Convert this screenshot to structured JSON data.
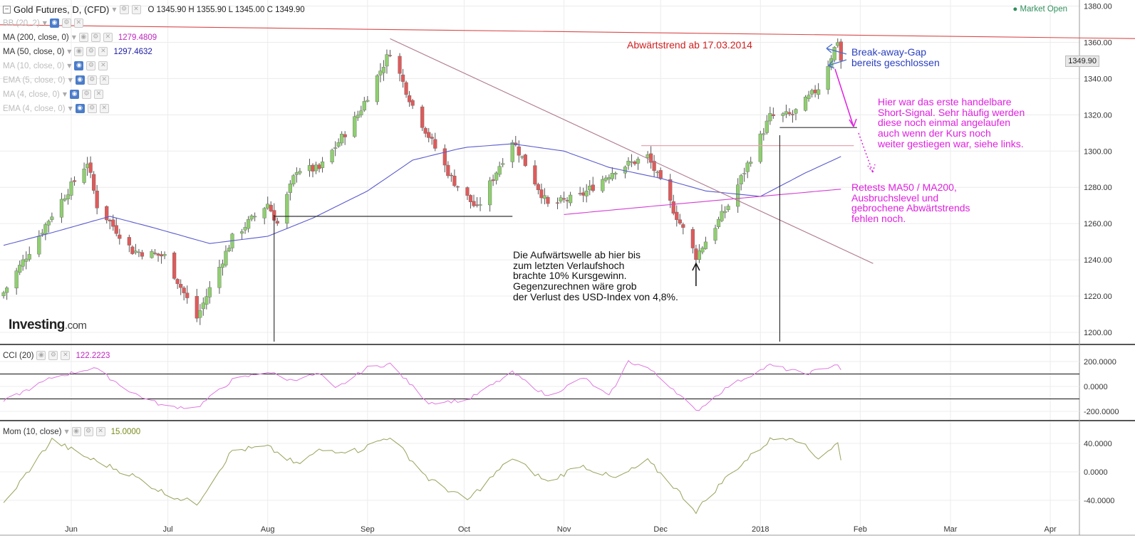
{
  "header": {
    "title": "Gold Futures, D, (CFD)",
    "ohlc": "O 1345.90  H 1355.90  L 1345.00  C 1349.90",
    "market_status": "Market Open",
    "current_price_label": "1349.90"
  },
  "indicators": [
    {
      "label": "BB (20, 2)",
      "value": "",
      "active": false
    },
    {
      "label": "MA (200, close, 0)",
      "value": "1279.4809",
      "active": true,
      "color": "#c026c0"
    },
    {
      "label": "MA (50, close, 0)",
      "value": "1297.4632",
      "active": true,
      "color": "#1a1aa6"
    },
    {
      "label": "MA (10, close, 0)",
      "value": "",
      "active": false
    },
    {
      "label": "EMA (5, close, 0)",
      "value": "",
      "active": false
    },
    {
      "label": "MA (4, close, 0)",
      "value": "",
      "active": false
    },
    {
      "label": "EMA (4, close, 0)",
      "value": "",
      "active": false
    }
  ],
  "sub_panels": {
    "cci": {
      "label": "CCI (20)",
      "value": "122.2223",
      "color": "#c026c0"
    },
    "mom": {
      "label": "Mom (10, close)",
      "value": "15.0000",
      "color": "#7a8a1a"
    }
  },
  "logo": {
    "main": "Investing",
    "suffix": ".com"
  },
  "annotations": {
    "downtrend": "Abwärtstrend ab 17.03.2014",
    "gap": "Break-away-Gap\nbereits geschlossen",
    "short_signal": "Hier war das erste handelbare\nShort-Signal. Sehr häufig werden\ndiese noch einmal angelaufen\nauch wenn der Kurs noch\nweiter gestiegen war, siehe links.",
    "retests": "Retests MA50 / MA200,\nAusbruchslevel und\ngebrochene Abwärtstrends\nfehlen noch.",
    "upwave": "Die Aufwärtswelle ab hier bis\nzum letzten Verlaufshoch\nbrachte 10% Kursgewinn.\nGegenzurechnen wäre grob\nder Verlust des USD-Index von 4,8%."
  },
  "colors": {
    "up": "#8fcf6f",
    "down": "#e05a5a",
    "ma50": "#5a5acf",
    "ma200": "#d23fd2",
    "cci": "#e07ae0",
    "mom": "#9aa25a",
    "trendline_red": "#d84a4a",
    "trendline_mauve": "#b07a90",
    "annot_red": "#d02020",
    "annot_blue": "#2a3fbf",
    "annot_magenta": "#e020e0"
  },
  "chart_data": {
    "type": "candlestick",
    "instrument": "Gold Futures",
    "timeframe": "D",
    "xlabels": [
      "Jun",
      "Jul",
      "Aug",
      "Sep",
      "Oct",
      "Nov",
      "Dec",
      "2018",
      "Feb",
      "Mar",
      "Apr"
    ],
    "price_axis": {
      "ticks": [
        1200,
        1220,
        1240,
        1260,
        1280,
        1300,
        1320,
        1340,
        1360,
        1380
      ],
      "ylim": [
        1194,
        1382
      ]
    },
    "cci_axis": {
      "ticks": [
        "200.0000",
        "0.0000",
        "-200.0000"
      ],
      "levels": [
        100,
        -100
      ]
    },
    "mom_axis": {
      "ticks": [
        "40.0000",
        "0.0000",
        "-40.0000"
      ]
    },
    "close_waypoints": [
      [
        "2017-05-11",
        1222
      ],
      [
        "2017-05-26",
        1265
      ],
      [
        "2017-06-06",
        1294
      ],
      [
        "2017-06-09",
        1270
      ],
      [
        "2017-06-20",
        1245
      ],
      [
        "2017-06-30",
        1242
      ],
      [
        "2017-07-10",
        1208
      ],
      [
        "2017-07-21",
        1252
      ],
      [
        "2017-08-01",
        1271
      ],
      [
        "2017-08-04",
        1260
      ],
      [
        "2017-08-10",
        1290
      ],
      [
        "2017-08-17",
        1290
      ],
      [
        "2017-08-29",
        1320
      ],
      [
        "2017-09-08",
        1355
      ],
      [
        "2017-09-15",
        1325
      ],
      [
        "2017-09-27",
        1285
      ],
      [
        "2017-10-05",
        1268
      ],
      [
        "2017-10-16",
        1306
      ],
      [
        "2017-10-27",
        1270
      ],
      [
        "2017-11-06",
        1275
      ],
      [
        "2017-11-17",
        1290
      ],
      [
        "2017-11-27",
        1297
      ],
      [
        "2017-12-12",
        1242
      ],
      [
        "2017-12-22",
        1270
      ],
      [
        "2018-01-04",
        1319
      ],
      [
        "2018-01-11",
        1320
      ],
      [
        "2018-01-19",
        1335
      ],
      [
        "2018-01-25",
        1361
      ],
      [
        "2018-01-26",
        1350
      ]
    ],
    "ma50_waypoints": [
      [
        "2017-05-11",
        1248
      ],
      [
        "2017-05-26",
        1255
      ],
      [
        "2017-06-13",
        1264
      ],
      [
        "2017-06-26",
        1258
      ],
      [
        "2017-07-14",
        1249
      ],
      [
        "2017-08-01",
        1253
      ],
      [
        "2017-08-15",
        1263
      ],
      [
        "2017-09-01",
        1278
      ],
      [
        "2017-09-15",
        1295
      ],
      [
        "2017-10-01",
        1302
      ],
      [
        "2017-10-16",
        1304
      ],
      [
        "2017-11-01",
        1300
      ],
      [
        "2017-11-15",
        1291
      ],
      [
        "2017-12-01",
        1285
      ],
      [
        "2017-12-15",
        1278
      ],
      [
        "2018-01-01",
        1275
      ],
      [
        "2018-01-15",
        1288
      ],
      [
        "2018-01-26",
        1297
      ]
    ],
    "ma200_waypoints": [
      [
        "2017-11-01",
        1265
      ],
      [
        "2017-12-01",
        1270
      ],
      [
        "2018-01-01",
        1275
      ],
      [
        "2018-01-26",
        1279
      ]
    ],
    "cci_waypoints": [
      [
        "2017-05-11",
        -120
      ],
      [
        "2017-05-26",
        70
      ],
      [
        "2017-06-08",
        150
      ],
      [
        "2017-06-20",
        -50
      ],
      [
        "2017-06-30",
        -160
      ],
      [
        "2017-07-10",
        -170
      ],
      [
        "2017-07-21",
        50
      ],
      [
        "2017-08-01",
        120
      ],
      [
        "2017-08-08",
        50
      ],
      [
        "2017-08-17",
        100
      ],
      [
        "2017-08-22",
        -20
      ],
      [
        "2017-09-01",
        150
      ],
      [
        "2017-09-08",
        180
      ],
      [
        "2017-09-20",
        -130
      ],
      [
        "2017-10-02",
        -110
      ],
      [
        "2017-10-16",
        110
      ],
      [
        "2017-10-27",
        -80
      ],
      [
        "2017-11-07",
        70
      ],
      [
        "2017-11-15",
        -80
      ],
      [
        "2017-11-21",
        200
      ],
      [
        "2017-11-27",
        150
      ],
      [
        "2017-12-05",
        -20
      ],
      [
        "2017-12-12",
        -200
      ],
      [
        "2017-12-22",
        0
      ],
      [
        "2018-01-04",
        170
      ],
      [
        "2018-01-15",
        100
      ],
      [
        "2018-01-25",
        180
      ],
      [
        "2018-01-26",
        122
      ]
    ],
    "mom_waypoints": [
      [
        "2017-05-11",
        -45
      ],
      [
        "2017-05-26",
        45
      ],
      [
        "2017-06-06",
        20
      ],
      [
        "2017-06-20",
        -5
      ],
      [
        "2017-06-30",
        -30
      ],
      [
        "2017-07-10",
        -45
      ],
      [
        "2017-07-21",
        30
      ],
      [
        "2017-08-01",
        35
      ],
      [
        "2017-08-10",
        10
      ],
      [
        "2017-08-17",
        30
      ],
      [
        "2017-08-29",
        30
      ],
      [
        "2017-09-08",
        50
      ],
      [
        "2017-09-20",
        -10
      ],
      [
        "2017-10-02",
        -40
      ],
      [
        "2017-10-16",
        20
      ],
      [
        "2017-10-27",
        -15
      ],
      [
        "2017-11-06",
        10
      ],
      [
        "2017-11-17",
        -10
      ],
      [
        "2017-11-27",
        15
      ],
      [
        "2017-12-05",
        -20
      ],
      [
        "2017-12-12",
        -55
      ],
      [
        "2017-12-22",
        -5
      ],
      [
        "2018-01-04",
        45
      ],
      [
        "2018-01-11",
        50
      ],
      [
        "2018-01-19",
        20
      ],
      [
        "2018-01-25",
        40
      ],
      [
        "2018-01-26",
        15
      ]
    ],
    "horizontal_levels": [
      {
        "from": "2017-08-03",
        "to": "2017-10-16",
        "value": 1264
      },
      {
        "from": "2017-11-25",
        "to": "2018-01-30",
        "value": 1303
      },
      {
        "from": "2018-01-07",
        "to": "2018-01-31",
        "value": 1313
      }
    ],
    "trendlines": [
      {
        "name": "red",
        "from": [
          "2017-04-24",
          1370
        ],
        "to": [
          "2018-04-30",
          1362
        ]
      },
      {
        "name": "mauve",
        "from": [
          "2017-09-08",
          1362
        ],
        "to": [
          "2018-02-05",
          1238
        ]
      }
    ],
    "markers": [
      {
        "date": "2017-08-03",
        "type": "vline"
      },
      {
        "date": "2018-01-07",
        "type": "vline"
      },
      {
        "date": "2017-12-12",
        "type": "arrow-up"
      }
    ]
  }
}
